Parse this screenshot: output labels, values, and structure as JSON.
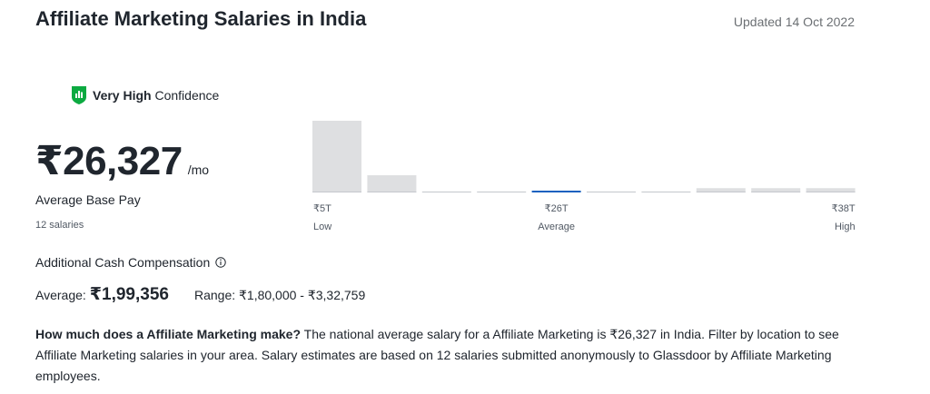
{
  "header": {
    "title": "Affiliate Marketing Salaries in India",
    "updated": "Updated 14 Oct 2022"
  },
  "confidence": {
    "level": "Very High",
    "suffix": " Confidence",
    "icon": "shield-bars-icon",
    "color": "#0caa41"
  },
  "pay": {
    "amount": "₹26,327",
    "unit": "/mo",
    "label": "Average Base Pay",
    "count": "12 salaries"
  },
  "additional": {
    "label": "Additional Cash Compensation",
    "info_icon": "info-icon",
    "average_label": "Average:",
    "average_value": "₹1,99,356",
    "range": "Range: ₹1,80,000 - ₹3,32,759"
  },
  "description": {
    "question": "How much does a Affiliate Marketing make?",
    "text": " The national average salary for a Affiliate Marketing is ₹26,327 in India. Filter by location to see Affiliate Marketing salaries in your area. Salary estimates are based on 12 salaries submitted anonymously to Glassdoor by Affiliate Marketing employees."
  },
  "chart_data": {
    "type": "bar",
    "title": "",
    "xlabel": "",
    "ylabel": "",
    "bins": 10,
    "values": [
      1.0,
      0.24,
      0.0,
      0.0,
      0.0,
      0.0,
      0.0,
      0.06,
      0.06,
      0.06
    ],
    "highlight_index": 4,
    "tick_labels": [
      {
        "bin": 0,
        "value": "₹5T",
        "sub": "Low",
        "align": "left"
      },
      {
        "bin": 4,
        "value": "₹26T",
        "sub": "Average",
        "align": "center"
      },
      {
        "bin": 9,
        "value": "₹38T",
        "sub": "High",
        "align": "right"
      }
    ],
    "colors": {
      "bar": "#dedfe1",
      "highlight": "#1861bf",
      "baseline": "#c4c7cc"
    }
  }
}
